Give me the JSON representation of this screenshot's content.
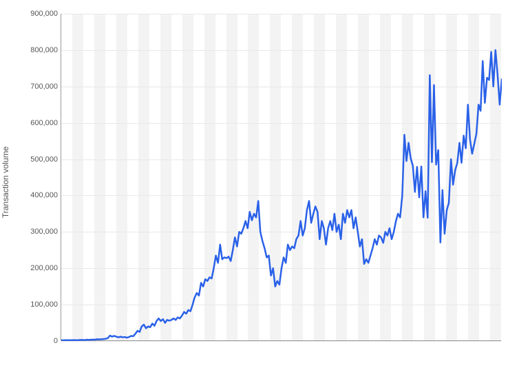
{
  "chart": {
    "type": "line",
    "y_axis_label": "Transaction volume",
    "label_fontsize": 12,
    "tick_fontsize": 11,
    "ylim": [
      0,
      900000
    ],
    "ytick_step": 100000,
    "ytick_labels": [
      "0",
      "100,000",
      "200,000",
      "300,000",
      "400,000",
      "500,000",
      "600,000",
      "700,000",
      "800,000",
      "900,000"
    ],
    "background_color": "#ffffff",
    "alt_stripe_color": "#f3f3f3",
    "grid_color": "#e8e8e8",
    "axis_color": "#999999",
    "line_color": "#2a61e8",
    "line_width": 2.5,
    "n_stripes": 40,
    "values": [
      2000,
      1800,
      2200,
      2000,
      2500,
      2000,
      2700,
      2000,
      2500,
      2800,
      3000,
      2500,
      3500,
      3000,
      3500,
      4000,
      3500,
      5000,
      4500,
      5000,
      5500,
      6000,
      8000,
      15000,
      12000,
      14000,
      12000,
      10000,
      12000,
      10000,
      11000,
      9000,
      11000,
      14000,
      13000,
      20000,
      28000,
      25000,
      40000,
      45000,
      35000,
      40000,
      38000,
      48000,
      42000,
      55000,
      62000,
      55000,
      60000,
      50000,
      58000,
      56000,
      58000,
      62000,
      58000,
      65000,
      62000,
      70000,
      80000,
      75000,
      85000,
      82000,
      100000,
      120000,
      132000,
      125000,
      160000,
      150000,
      170000,
      165000,
      175000,
      172000,
      200000,
      235000,
      215000,
      265000,
      225000,
      230000,
      228000,
      232000,
      220000,
      250000,
      285000,
      260000,
      300000,
      295000,
      310000,
      330000,
      310000,
      355000,
      332000,
      350000,
      340000,
      385000,
      300000,
      275000,
      255000,
      230000,
      235000,
      180000,
      200000,
      150000,
      165000,
      155000,
      200000,
      230000,
      215000,
      265000,
      250000,
      260000,
      255000,
      280000,
      290000,
      330000,
      290000,
      310000,
      360000,
      385000,
      325000,
      350000,
      370000,
      355000,
      280000,
      330000,
      310000,
      265000,
      310000,
      330000,
      305000,
      350000,
      300000,
      320000,
      280000,
      350000,
      325000,
      360000,
      340000,
      360000,
      310000,
      340000,
      300000,
      260000,
      280000,
      212000,
      225000,
      215000,
      235000,
      255000,
      280000,
      265000,
      290000,
      285000,
      270000,
      300000,
      290000,
      310000,
      280000,
      300000,
      330000,
      350000,
      340000,
      400000,
      567000,
      495000,
      545000,
      502000,
      482000,
      410000,
      479000,
      395000,
      480000,
      340000,
      412000,
      339000,
      731000,
      492000,
      704000,
      485000,
      525000,
      271000,
      415000,
      295000,
      360000,
      380000,
      500000,
      430000,
      470000,
      490000,
      545000,
      490000,
      565000,
      530000,
      650000,
      555000,
      515000,
      542000,
      570000,
      650000,
      633000,
      770000,
      655000,
      724000,
      718000,
      795000,
      700000,
      800000,
      735000,
      650000,
      720000
    ]
  }
}
